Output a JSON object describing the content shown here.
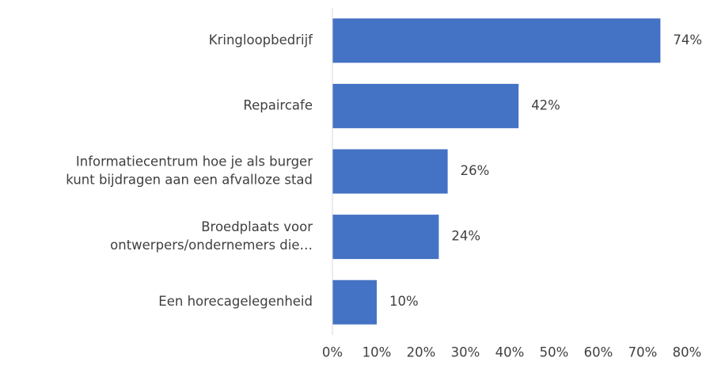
{
  "chart_data": {
    "type": "hbar",
    "categories": [
      "Kringloopbedrijf",
      "Repaircafe",
      [
        "Informatiecentrum hoe je als burger",
        "kunt bijdragen aan een afvalloze stad"
      ],
      [
        "Broedplaats voor",
        "ontwerpers/ondernemers die…"
      ],
      "Een horecagelegenheid"
    ],
    "values": [
      74,
      42,
      26,
      24,
      10
    ],
    "value_labels": [
      "74%",
      "42%",
      "26%",
      "24%",
      "10%"
    ],
    "color": "#4472c4",
    "xlim": [
      0,
      80
    ],
    "xticks": [
      {
        "value": 0,
        "label": "0%"
      },
      {
        "value": 10,
        "label": "10%"
      },
      {
        "value": 20,
        "label": "20%"
      },
      {
        "value": 30,
        "label": "30%"
      },
      {
        "value": 40,
        "label": "40%"
      },
      {
        "value": 50,
        "label": "50%"
      },
      {
        "value": 60,
        "label": "60%"
      },
      {
        "value": 70,
        "label": "70%"
      },
      {
        "value": 80,
        "label": "80%"
      }
    ],
    "grid": false
  }
}
